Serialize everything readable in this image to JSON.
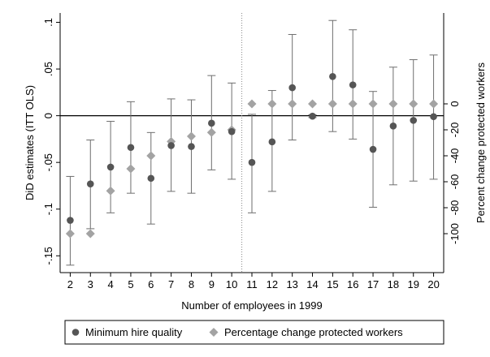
{
  "chart_data": {
    "type": "scatter",
    "xlabel": "Number of employees in 1999",
    "ylabel": "DiD estimates (ITT OLS)",
    "y2label": "Percent change protected workers",
    "x": [
      2,
      3,
      4,
      5,
      6,
      7,
      8,
      9,
      10,
      11,
      12,
      13,
      14,
      15,
      16,
      17,
      18,
      19,
      20
    ],
    "xlim": [
      1.5,
      20.5
    ],
    "ylim": [
      -0.168,
      0.11
    ],
    "y2lim": [
      -130,
      70
    ],
    "x_ticks": [
      "2",
      "3",
      "4",
      "5",
      "6",
      "7",
      "8",
      "9",
      "10",
      "11",
      "12",
      "13",
      "14",
      "15",
      "16",
      "17",
      "18",
      "19",
      "20"
    ],
    "y_ticks": [
      {
        "value": 0.1,
        "label": ".1"
      },
      {
        "value": 0.05,
        "label": ".05"
      },
      {
        "value": 0,
        "label": "0"
      },
      {
        "value": -0.05,
        "label": "-.05"
      },
      {
        "value": -0.1,
        "label": "-.1"
      },
      {
        "value": -0.15,
        "label": "-.15"
      }
    ],
    "y2_ticks": [
      {
        "value": 0,
        "label": "0"
      },
      {
        "value": -20,
        "label": "-20"
      },
      {
        "value": -40,
        "label": "-40"
      },
      {
        "value": -60,
        "label": "-60"
      },
      {
        "value": -80,
        "label": "-80"
      },
      {
        "value": -100,
        "label": "-100"
      }
    ],
    "reference_lines": {
      "zero_hline": 0,
      "vline_dotted_x": 10.5
    },
    "grid": false,
    "legend_position": "bottom",
    "series": [
      {
        "name": "Minimum hire quality",
        "marker": "circle",
        "color": "#555555",
        "axis": "left",
        "values": [
          -0.112,
          -0.073,
          -0.055,
          -0.034,
          -0.067,
          -0.032,
          -0.033,
          -0.008,
          -0.017,
          -0.05,
          -0.028,
          0.03,
          -0.0005,
          0.042,
          0.033,
          -0.036,
          -0.011,
          -0.005,
          -0.001
        ],
        "ci_low": [
          -0.16,
          -0.121,
          -0.104,
          -0.083,
          -0.116,
          -0.081,
          -0.083,
          -0.058,
          -0.068,
          -0.104,
          -0.081,
          -0.026,
          -0.002,
          -0.017,
          -0.025,
          -0.098,
          -0.074,
          -0.07,
          -0.068
        ],
        "ci_high": [
          -0.065,
          -0.026,
          -0.006,
          0.015,
          -0.018,
          0.018,
          0.017,
          0.043,
          0.035,
          0.0015,
          0.027,
          0.087,
          0.001,
          0.102,
          0.092,
          0.026,
          0.052,
          0.06,
          0.065
        ]
      },
      {
        "name": "Percentage change protected workers",
        "marker": "diamond",
        "color": "#a3a3a3",
        "axis": "right",
        "values": [
          -100,
          -100,
          -67,
          -50,
          -40,
          -29,
          -25,
          -22,
          -20,
          0,
          0,
          0,
          0,
          0,
          0,
          0,
          0,
          0,
          0
        ]
      }
    ]
  }
}
